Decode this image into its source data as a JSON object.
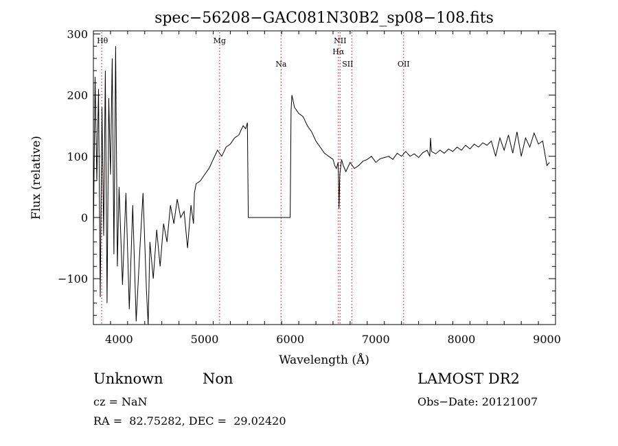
{
  "chart_data": {
    "type": "line",
    "title": "spec−56208−GAC081N30B2_sp08−108.fits",
    "xlabel": "Wavelength (Å)",
    "ylabel": "Flux (relative)",
    "xlim": [
      3700,
      9100
    ],
    "ylim": [
      -175,
      305
    ],
    "xticks": [
      4000,
      5000,
      6000,
      7000,
      8000,
      9000
    ],
    "xtick_labels": [
      "4000",
      "5000",
      "6000",
      "7000",
      "8000",
      "9000"
    ],
    "yticks": [
      -100,
      0,
      100,
      200,
      300
    ],
    "ytick_labels": [
      "−100",
      "0",
      "100",
      "200",
      "300"
    ],
    "grid": false,
    "line_color": "#000000",
    "marker_color": "#d62728",
    "lines": [
      {
        "label": "Hθ",
        "wavelength": 3797,
        "level": "top"
      },
      {
        "label": "Mg",
        "wavelength": 5175,
        "level": "top"
      },
      {
        "label": "Na",
        "wavelength": 5893,
        "level": "low"
      },
      {
        "label": "NII",
        "wavelength": 6583,
        "level": "top"
      },
      {
        "label": "Hα",
        "wavelength": 6563,
        "level": "mid"
      },
      {
        "label": "SII",
        "wavelength": 6720,
        "level": "low"
      },
      {
        "label": "OII",
        "wavelength": 7325,
        "level": "low"
      }
    ],
    "series": [
      {
        "x": [
          3700,
          3720,
          3740,
          3760,
          3780,
          3800,
          3820,
          3840,
          3860,
          3880,
          3900,
          3920,
          3940,
          3960,
          3980,
          4000,
          4040,
          4080,
          4120,
          4160,
          4200,
          4240,
          4280,
          4320,
          4340,
          4360,
          4400,
          4440,
          4480,
          4520,
          4560,
          4600,
          4640,
          4680,
          4720,
          4760,
          4800,
          4840,
          4870,
          4880,
          4900,
          4950,
          5000,
          5050,
          5100,
          5150,
          5200,
          5250,
          5300,
          5350,
          5400,
          5450,
          5480,
          5500,
          5510,
          5600,
          5700,
          5800,
          5900,
          6000,
          6010,
          6020,
          6050,
          6100,
          6150,
          6200,
          6250,
          6300,
          6350,
          6400,
          6450,
          6500,
          6520,
          6540,
          6560,
          6565,
          6570,
          6580,
          6600,
          6620,
          6650,
          6700,
          6750,
          6800,
          6850,
          6900,
          6950,
          7000,
          7050,
          7100,
          7150,
          7200,
          7250,
          7300,
          7350,
          7400,
          7450,
          7500,
          7550,
          7600,
          7630,
          7640,
          7650,
          7700,
          7750,
          7800,
          7850,
          7900,
          7950,
          8000,
          8050,
          8100,
          8150,
          8200,
          8250,
          8300,
          8350,
          8400,
          8450,
          8500,
          8550,
          8600,
          8650,
          8700,
          8750,
          8800,
          8850,
          8900,
          8950,
          9000,
          9030
        ],
        "y": [
          -30,
          230,
          60,
          210,
          -130,
          180,
          -30,
          240,
          -140,
          195,
          70,
          260,
          -60,
          280,
          -80,
          50,
          -110,
          40,
          -150,
          20,
          -170,
          -60,
          40,
          -120,
          -175,
          -40,
          -100,
          -20,
          -80,
          -10,
          -40,
          20,
          -10,
          30,
          0,
          10,
          -50,
          20,
          -10,
          40,
          55,
          60,
          70,
          80,
          95,
          110,
          100,
          115,
          120,
          130,
          135,
          150,
          145,
          155,
          0,
          0,
          0,
          0,
          0,
          0,
          175,
          200,
          180,
          170,
          165,
          150,
          140,
          125,
          115,
          105,
          100,
          95,
          85,
          80,
          90,
          60,
          15,
          70,
          95,
          85,
          75,
          90,
          80,
          85,
          92,
          95,
          100,
          90,
          96,
          98,
          100,
          95,
          105,
          100,
          108,
          100,
          104,
          98,
          106,
          110,
          100,
          130,
          108,
          104,
          110,
          105,
          112,
          108,
          115,
          110,
          118,
          112,
          120,
          115,
          122,
          118,
          125,
          100,
          130,
          110,
          135,
          105,
          140,
          100,
          130,
          115,
          138,
          120,
          125,
          85,
          90
        ]
      }
    ]
  },
  "info": {
    "object_type": "Unknown",
    "object_subtype": "Non",
    "survey": "LAMOST DR2",
    "redshift": "cz = NaN",
    "obs_date": "Obs−Date: 20121007",
    "coords": "RA =  82.75282, DEC =  29.02420"
  }
}
